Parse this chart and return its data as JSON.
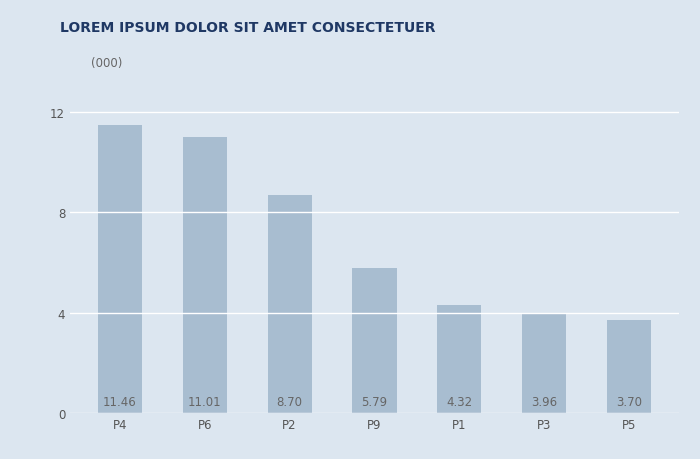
{
  "categories": [
    "P4",
    "P6",
    "P2",
    "P9",
    "P1",
    "P3",
    "P5"
  ],
  "values": [
    11.46,
    11.01,
    8.7,
    5.79,
    4.32,
    3.96,
    3.7
  ],
  "bar_color": "#a8bdd0",
  "title": "LOREM IPSUM DOLOR SIT AMET CONSECTETUER",
  "title_color": "#1f3864",
  "ylabel_text": "(000)",
  "background_color": "#dce6f0",
  "yticks": [
    0,
    4,
    8,
    12
  ],
  "ylim": [
    0,
    13.2
  ],
  "bar_label_color": "#666666",
  "bar_label_fontsize": 8.5,
  "title_fontsize": 10,
  "axis_tick_fontsize": 8.5,
  "ylabel_fontsize": 8.5,
  "grid_color": "#ffffff",
  "bar_width": 0.52
}
